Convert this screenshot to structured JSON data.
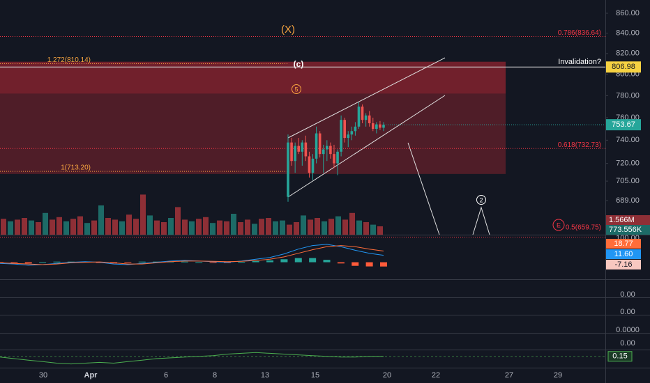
{
  "chart_data": {
    "type": "candlestick",
    "log_scale": true,
    "ylim": [
      661.7,
      873.6
    ],
    "yticks": [
      {
        "value": 860,
        "label": "860.00"
      },
      {
        "value": 840,
        "label": "840.00"
      },
      {
        "value": 820,
        "label": "820.00"
      },
      {
        "value": 800,
        "label": "800.00"
      },
      {
        "value": 780,
        "label": "780.00"
      },
      {
        "value": 760,
        "label": "760.00"
      },
      {
        "value": 740,
        "label": "740.00"
      },
      {
        "value": 720,
        "label": "720.00"
      },
      {
        "value": 705,
        "label": "705.00"
      },
      {
        "value": 689,
        "label": "689.00"
      }
    ],
    "xticks": [
      "30",
      "Apr",
      "6",
      "8",
      "13",
      "15",
      "20",
      "22",
      "27",
      "29"
    ],
    "up_color": "#26a69a",
    "down_color": "#ef5350",
    "candles": {
      "open": [
        692,
        738,
        722,
        735,
        730,
        738,
        726,
        712,
        724,
        746,
        728,
        732,
        735,
        728,
        720,
        730,
        758,
        742,
        745,
        748,
        752,
        770,
        758,
        762,
        755,
        750,
        754,
        751
      ],
      "high": [
        745,
        742,
        738,
        742,
        740,
        744,
        730,
        728,
        752,
        748,
        736,
        740,
        738,
        736,
        732,
        762,
        760,
        748,
        752,
        756,
        774,
        772,
        764,
        766,
        760,
        756,
        757,
        756
      ],
      "low": [
        688,
        718,
        712,
        728,
        718,
        722,
        708,
        706,
        720,
        725,
        712,
        722,
        724,
        716,
        710,
        726,
        738,
        734,
        740,
        744,
        750,
        755,
        752,
        752,
        748,
        746,
        749,
        748
      ],
      "close": [
        738,
        722,
        735,
        730,
        738,
        726,
        712,
        724,
        746,
        728,
        732,
        735,
        728,
        720,
        730,
        758,
        742,
        745,
        748,
        752,
        770,
        758,
        762,
        755,
        750,
        754,
        751,
        753.67
      ]
    },
    "last_price": {
      "value": 753.67,
      "label": "753.67"
    },
    "levels": [
      {
        "value": 836.64,
        "label": "0.786(836.64)",
        "color": "#f23645",
        "side": "right"
      },
      {
        "value": 810.14,
        "label": "1.272(810.14)",
        "color": "#f7a440",
        "side": "left"
      },
      {
        "value": 732.73,
        "label": "0.618(732.73)",
        "color": "#f23645",
        "side": "right"
      },
      {
        "value": 713.2,
        "label": "1(713.20)",
        "color": "#f7a440",
        "side": "left"
      },
      {
        "value": 659.75,
        "label": "0.5(659.75)",
        "color": "#f23645",
        "side": "right"
      }
    ],
    "invalidation": {
      "text": "Invalidation?",
      "value": 806.98,
      "label": "806.98"
    },
    "zone": {
      "from": 711,
      "to": 812,
      "inner_from": 782
    },
    "annotations": [
      "(X)",
      "(c)",
      "5",
      "2",
      "E"
    ],
    "volume": {
      "values": [
        1.9,
        1.6,
        1.8,
        2.0,
        1.7,
        1.5,
        2.6,
        1.8,
        2.1,
        1.6,
        1.9,
        2.2,
        1.4,
        1.7,
        3.5,
        2.0,
        1.8,
        1.6,
        2.4,
        1.9,
        4.8,
        2.3,
        1.7,
        1.5,
        2.0,
        3.3,
        1.8,
        1.6,
        1.9,
        2.1,
        1.4,
        1.7,
        1.6,
        2.5,
        1.5,
        1.8,
        1.3,
        1.9,
        2.0,
        1.6,
        1.7,
        1.2,
        1.5,
        2.3,
        1.8,
        2.0,
        1.6,
        1.9,
        2.2,
        1.8,
        2.6,
        1.7,
        1.5,
        1.2,
        1.0
      ],
      "up": [
        0,
        1,
        0,
        0,
        1,
        0,
        1,
        0,
        0,
        1,
        0,
        0,
        1,
        0,
        1,
        0,
        0,
        1,
        0,
        0,
        0,
        1,
        0,
        0,
        1,
        0,
        0,
        1,
        0,
        0,
        1,
        0,
        0,
        1,
        0,
        0,
        1,
        0,
        0,
        1,
        1,
        0,
        0,
        1,
        0,
        0,
        1,
        0,
        1,
        0,
        0,
        1,
        0,
        1,
        0
      ],
      "up_color": "#1d6b67",
      "down_color": "#8e2f36",
      "ylim": [
        0,
        6
      ],
      "labels": [
        {
          "value": 1.566,
          "label": "1.566M"
        },
        {
          "value": 773.556,
          "label": "773.556K"
        }
      ]
    },
    "macd": {
      "ylim": [
        -25,
        45
      ],
      "top_tick": {
        "value": 100,
        "label": "100.00"
      },
      "macd": [
        -2,
        -3,
        -5,
        -4,
        -2,
        0,
        1,
        0,
        -3,
        -4,
        -2,
        0,
        2,
        3,
        2,
        1,
        0,
        2,
        5,
        8,
        14,
        22,
        28,
        30,
        26,
        20,
        15,
        11.6
      ],
      "signal": [
        -1,
        -2,
        -3,
        -4,
        -3,
        -1,
        0,
        0.5,
        -1,
        -3,
        -3,
        -1,
        1,
        2,
        2,
        1.5,
        1,
        1.5,
        3,
        5,
        9,
        15,
        21,
        26,
        28,
        26,
        22,
        18.77
      ],
      "hist": [
        -1,
        -1,
        -2,
        0,
        1,
        1,
        1,
        -0.5,
        -2,
        -1,
        1,
        1,
        1,
        1,
        0,
        -0.5,
        -1,
        0.5,
        2,
        3,
        5,
        7,
        7,
        4,
        -2,
        -6,
        -7,
        -7.16
      ],
      "labels": [
        {
          "value": 18.77,
          "label": "18.77"
        },
        {
          "value": 11.6,
          "label": "11.60"
        },
        {
          "value": -7.16,
          "label": "-7.16"
        }
      ]
    },
    "panel_ticks": [
      {
        "value": 0,
        "label": "0.00"
      },
      {
        "value": 0,
        "label": "0.00"
      },
      {
        "value": 0,
        "label": "0.0000"
      },
      {
        "value": 0,
        "label": "0.00"
      }
    ],
    "osc": {
      "ylim": [
        -0.6,
        0.6
      ],
      "values": [
        0.1,
        0,
        -0.1,
        -0.2,
        -0.3,
        -0.35,
        -0.3,
        -0.25,
        -0.3,
        -0.2,
        -0.1,
        0,
        0.05,
        0.1,
        0.15,
        0.2,
        0.3,
        0.35,
        0.4,
        0.35,
        0.3,
        0.25,
        0.2,
        0.15,
        0.1,
        0.1,
        0.15,
        0.15
      ],
      "label": {
        "value": 0.15,
        "label": "0.15"
      }
    }
  }
}
